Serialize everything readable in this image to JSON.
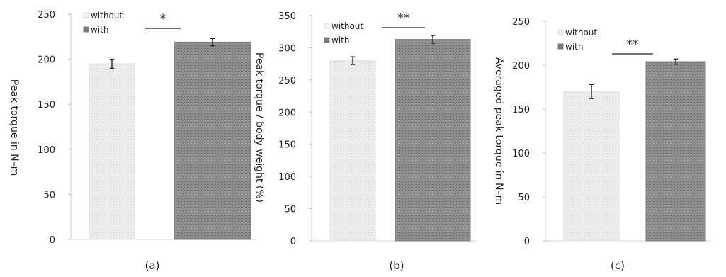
{
  "chart_data": [
    {
      "type": "bar",
      "panel_label": "(a)",
      "categories": [
        "without",
        "with"
      ],
      "values": [
        195,
        219
      ],
      "errors": [
        5,
        4
      ],
      "ylabel": "Peak torque in N–m",
      "ylim": [
        0,
        250
      ],
      "yticks": [
        0,
        50,
        100,
        150,
        200,
        250
      ],
      "legend": [
        "without",
        "with"
      ],
      "legend_position": "top-left",
      "significance": "*",
      "grid": false
    },
    {
      "type": "bar",
      "panel_label": "(b)",
      "categories": [
        "without",
        "with"
      ],
      "values": [
        280,
        313
      ],
      "errors": [
        6,
        6
      ],
      "ylabel": "Peak torque / body weight (%)",
      "ylim": [
        0,
        350
      ],
      "yticks": [
        0,
        50,
        100,
        150,
        200,
        250,
        300,
        350
      ],
      "legend": [
        "without",
        "with"
      ],
      "legend_position": "top-left",
      "significance": "**",
      "grid": false
    },
    {
      "type": "bar",
      "panel_label": "(c)",
      "categories": [
        "without",
        "with"
      ],
      "values": [
        170,
        204
      ],
      "errors": [
        8,
        3
      ],
      "ylabel": "Averaged peak torque in N–m",
      "ylim": [
        0,
        250
      ],
      "yticks": [
        0,
        50,
        100,
        150,
        200,
        250
      ],
      "legend": [
        "without",
        "with"
      ],
      "legend_position": "top-left",
      "significance": "**",
      "grid": false
    }
  ],
  "colors": {
    "without": "#eeeeee",
    "with": "#8a8a8a",
    "sig_line": "#444444"
  }
}
